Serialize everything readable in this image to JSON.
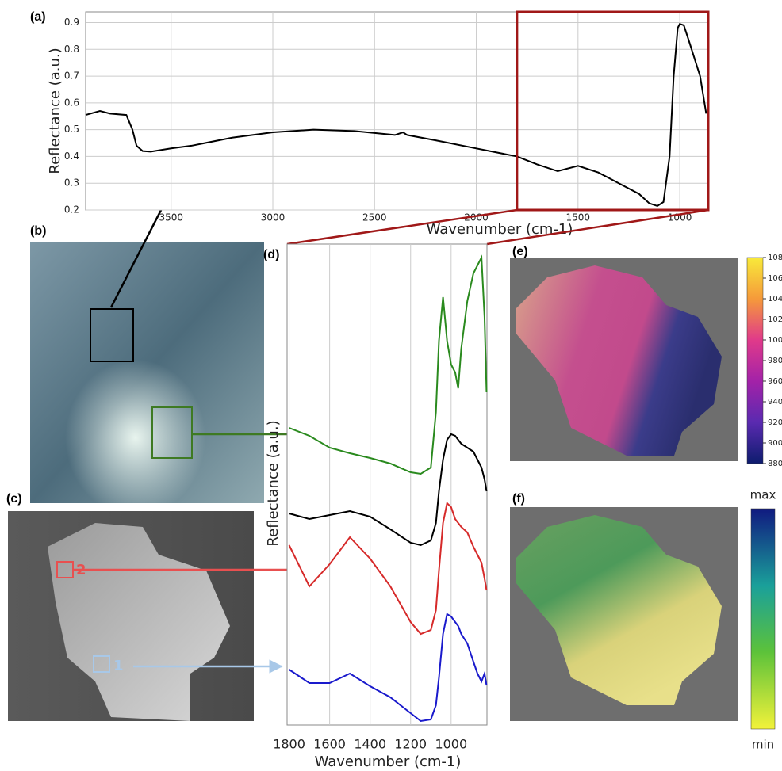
{
  "panels": [
    "(a)",
    "(b)",
    "(c)",
    "(d)",
    "(e)",
    "(f)"
  ],
  "annotations": [
    "2",
    "1"
  ],
  "colorbar_e": {
    "lim": [
      880,
      1080
    ],
    "ticks": [
      880,
      900,
      920,
      940,
      960,
      980,
      1000,
      1020,
      1040,
      1060,
      1080
    ]
  },
  "colorbar_f": {
    "max_label": "max",
    "min_label": "min"
  },
  "chart_data": [
    {
      "type": "line",
      "xlabel": "Wavenumber (cm-1)",
      "ylabel": "Reflectance (a.u.)",
      "color": "#000000",
      "grid": true,
      "x": [
        3920,
        3850,
        3800,
        3720,
        3690,
        3670,
        3640,
        3600,
        3500,
        3400,
        3200,
        3000,
        2800,
        2600,
        2400,
        2360,
        2340,
        2200,
        2000,
        1800,
        1700,
        1600,
        1500,
        1400,
        1300,
        1200,
        1150,
        1110,
        1080,
        1050,
        1030,
        1010,
        1000,
        980,
        950,
        900,
        870
      ],
      "values": [
        0.555,
        0.57,
        0.56,
        0.555,
        0.5,
        0.44,
        0.42,
        0.418,
        0.43,
        0.44,
        0.47,
        0.49,
        0.5,
        0.495,
        0.48,
        0.49,
        0.48,
        0.46,
        0.43,
        0.4,
        0.37,
        0.345,
        0.365,
        0.34,
        0.3,
        0.26,
        0.225,
        0.215,
        0.23,
        0.4,
        0.7,
        0.88,
        0.895,
        0.89,
        0.82,
        0.7,
        0.56
      ],
      "xlim": [
        3920,
        860
      ],
      "xticks": [
        3500,
        3000,
        2500,
        2000,
        1500,
        1000
      ],
      "ylim": [
        0.2,
        0.94
      ],
      "yticks": [
        0.2,
        0.3,
        0.4,
        0.5,
        0.6,
        0.7,
        0.8,
        0.9
      ],
      "highlight_x": [
        1800,
        860
      ],
      "highlight_color": "#a01818"
    },
    {
      "type": "line",
      "xlabel": "Wavenumber (cm-1)",
      "ylabel": "Reflectance (a.u.)",
      "grid": true,
      "x": [
        1800,
        1700,
        1600,
        1500,
        1400,
        1300,
        1200,
        1150,
        1100,
        1075,
        1060,
        1040,
        1020,
        1000,
        980,
        965,
        950,
        920,
        890,
        870,
        850,
        835,
        825
      ],
      "series": [
        {
          "color": "#2a8a1e",
          "values": [
            375,
            365,
            350,
            343,
            337,
            330,
            319,
            317,
            325,
            395,
            485,
            540,
            485,
            455,
            445,
            425,
            475,
            535,
            570,
            580,
            590,
            515,
            420
          ]
        },
        {
          "color": "#000000",
          "values": [
            267,
            260,
            265,
            270,
            263,
            247,
            230,
            227,
            233,
            255,
            295,
            335,
            360,
            367,
            365,
            360,
            355,
            350,
            345,
            335,
            325,
            310,
            295
          ]
        },
        {
          "color": "#d62a2a",
          "values": [
            227,
            175,
            203,
            237,
            210,
            175,
            130,
            115,
            120,
            145,
            195,
            255,
            280,
            275,
            260,
            255,
            250,
            243,
            225,
            215,
            205,
            185,
            170
          ]
        },
        {
          "color": "#1a1acc",
          "values": [
            70,
            53,
            53,
            65,
            49,
            35,
            15,
            5,
            7,
            25,
            60,
            115,
            140,
            137,
            130,
            125,
            115,
            103,
            80,
            65,
            55,
            65,
            50
          ]
        }
      ],
      "xlim": [
        1810,
        823
      ],
      "xticks": [
        1800,
        1600,
        1400,
        1200,
        1000
      ],
      "ylim": [
        0,
        607
      ]
    }
  ]
}
